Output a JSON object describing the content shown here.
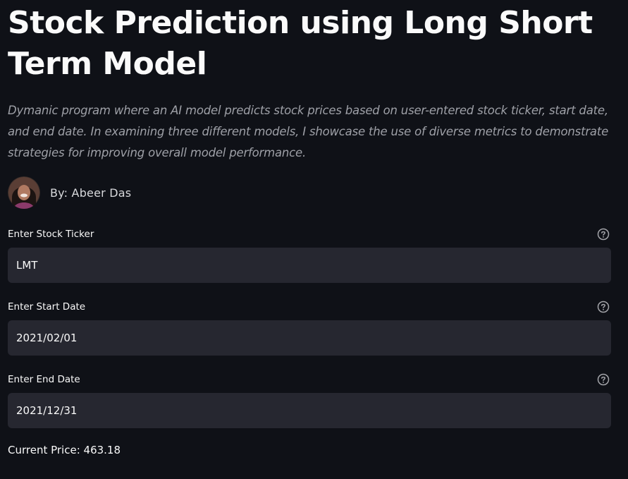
{
  "header": {
    "title": "Stock Prediction using Long Short Term Model",
    "description": "Dymanic program where an AI model predicts stock prices based on user-entered stock ticker, start date, and end date. In examining three different models, I showcase the use of diverse metrics to demonstrate strategies for improving overall model performance."
  },
  "author": {
    "byline": "By: Abeer Das"
  },
  "fields": [
    {
      "label": "Enter Stock Ticker",
      "value": "LMT"
    },
    {
      "label": "Enter Start Date",
      "value": "2021/02/01"
    },
    {
      "label": "Enter End Date",
      "value": "2021/12/31"
    }
  ],
  "result": {
    "current_price_text": "Current Price: 463.18"
  },
  "colors": {
    "background": "#0f1117",
    "input_background": "#262730",
    "text": "#fafafa",
    "muted_text": "#9ea0a7"
  },
  "icons": {
    "help": "question-circle-icon",
    "avatar": "profile-photo"
  }
}
